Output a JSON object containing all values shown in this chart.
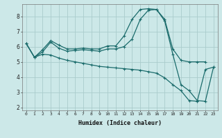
{
  "xlabel": "Humidex (Indice chaleur)",
  "bg_color": "#cce8e8",
  "grid_color": "#aacccc",
  "line_color": "#1a6b6b",
  "xlim": [
    -0.5,
    23.5
  ],
  "ylim": [
    1.8,
    8.8
  ],
  "yticks": [
    2,
    3,
    4,
    5,
    6,
    7,
    8
  ],
  "xticks": [
    0,
    1,
    2,
    3,
    4,
    5,
    6,
    7,
    8,
    9,
    10,
    11,
    12,
    13,
    14,
    15,
    16,
    17,
    18,
    19,
    20,
    21,
    22,
    23
  ],
  "line1_x": [
    0,
    1,
    2,
    3,
    4,
    5,
    6,
    7,
    8,
    9,
    10,
    11,
    12,
    13,
    14,
    15,
    16,
    17,
    18,
    19,
    20,
    21,
    22
  ],
  "line1_y": [
    6.2,
    5.3,
    5.8,
    6.4,
    6.1,
    5.85,
    5.85,
    5.9,
    5.85,
    5.85,
    6.05,
    6.05,
    6.7,
    7.8,
    8.45,
    8.5,
    8.45,
    7.8,
    5.85,
    5.1,
    5.0,
    5.0,
    5.0
  ],
  "line2_x": [
    0,
    1,
    2,
    3,
    4,
    5,
    6,
    7,
    8,
    9,
    10,
    11,
    12,
    13,
    14,
    15,
    16,
    17,
    18,
    19,
    20,
    21,
    22,
    23
  ],
  "line2_y": [
    6.2,
    5.3,
    5.65,
    6.3,
    5.9,
    5.7,
    5.75,
    5.8,
    5.75,
    5.7,
    5.85,
    5.85,
    6.0,
    6.5,
    7.8,
    8.4,
    8.45,
    7.7,
    5.5,
    3.5,
    3.1,
    2.45,
    2.4,
    4.65
  ],
  "line3_x": [
    0,
    1,
    2,
    3,
    4,
    5,
    6,
    7,
    8,
    9,
    10,
    11,
    12,
    13,
    14,
    15,
    16,
    17,
    18,
    19,
    20,
    21,
    22,
    23
  ],
  "line3_y": [
    6.2,
    5.3,
    5.5,
    5.45,
    5.25,
    5.1,
    5.0,
    4.9,
    4.8,
    4.7,
    4.65,
    4.6,
    4.55,
    4.5,
    4.45,
    4.35,
    4.25,
    3.95,
    3.5,
    3.1,
    2.45,
    2.4,
    4.5,
    4.65
  ]
}
